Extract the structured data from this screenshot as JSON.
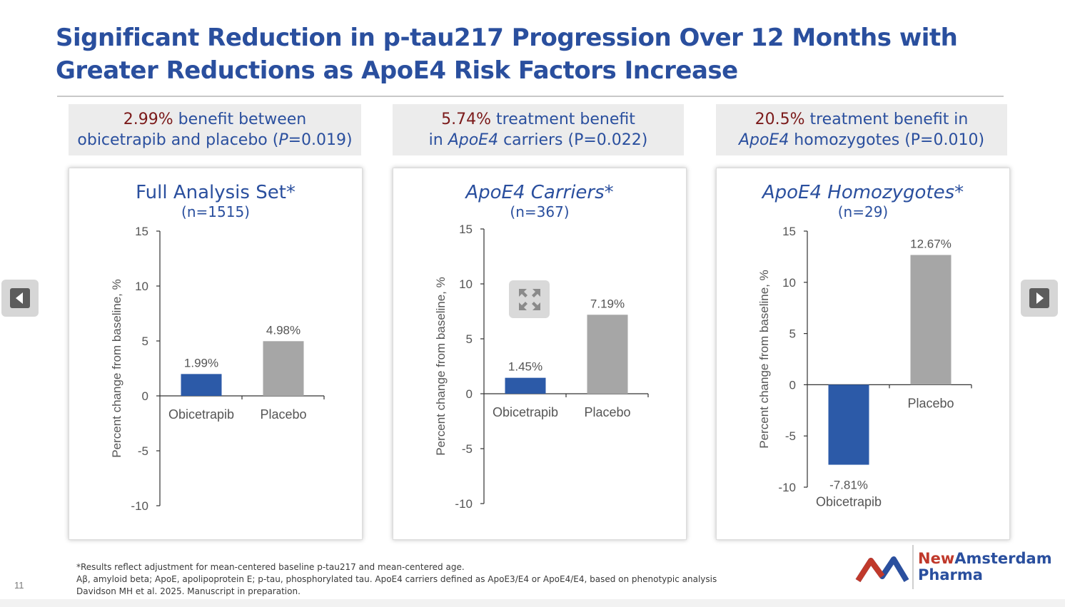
{
  "title": "Significant Reduction in p-tau217 Progression Over 12 Months with Greater Reductions as ApoE4 Risk Factors Increase",
  "benefits": [
    {
      "line1_highlight": "2.99%",
      "line1_rest": " benefit between",
      "line2_pre": "obicetrapib and placebo (",
      "line2_italic": "P",
      "line2_post": "=0.019)"
    },
    {
      "line1_highlight": "5.74%",
      "line1_rest": " treatment benefit",
      "line2_pre": "in ",
      "line2_italic": "ApoE4",
      "line2_post": " carriers (P=0.022)"
    },
    {
      "line1_highlight": "20.5%",
      "line1_rest": " treatment benefit in",
      "line2_pre": "",
      "line2_italic": "ApoE4",
      "line2_post": " homozygotes (P=0.010)"
    }
  ],
  "chart_data": [
    {
      "type": "bar",
      "title": "Full Analysis Set*",
      "title_italic": false,
      "subtitle": "(n=1515)",
      "ylabel": "Percent change from baseline, %",
      "ylim": [
        -10,
        15
      ],
      "yticks": [
        -10,
        -5,
        0,
        5,
        10,
        15
      ],
      "categories": [
        "Obicetrapib",
        "Placebo"
      ],
      "values": [
        1.99,
        4.98
      ],
      "value_labels": [
        "1.99%",
        "4.98%"
      ],
      "colors": [
        "#2c5aa8",
        "#a6a6a6"
      ]
    },
    {
      "type": "bar",
      "title": "ApoE4 Carriers*",
      "title_italic": true,
      "subtitle": "(n=367)",
      "ylabel": "Percent change from baseline, %",
      "ylim": [
        -10,
        15
      ],
      "yticks": [
        -10,
        -5,
        0,
        5,
        10,
        15
      ],
      "categories": [
        "Obicetrapib",
        "Placebo"
      ],
      "values": [
        1.45,
        7.19
      ],
      "value_labels": [
        "1.45%",
        "7.19%"
      ],
      "colors": [
        "#2c5aa8",
        "#a6a6a6"
      ]
    },
    {
      "type": "bar",
      "title": "ApoE4 Homozygotes*",
      "title_italic": true,
      "subtitle": "(n=29)",
      "ylabel": "Percent change from baseline, %",
      "ylim": [
        -10,
        15
      ],
      "yticks": [
        -10,
        -5,
        0,
        5,
        10,
        15
      ],
      "categories": [
        "Obicetrapib",
        "Placebo"
      ],
      "values": [
        -7.81,
        12.67
      ],
      "value_labels": [
        "-7.81%",
        "12.67%"
      ],
      "colors": [
        "#2c5aa8",
        "#a6a6a6"
      ]
    }
  ],
  "footnotes": [
    "*Results reflect adjustment for mean-centered baseline p-tau217 and mean-centered age.",
    "Aβ, amyloid beta; ApoE, apolipoprotein E; p-tau, phosphorylated tau. ApoE4 carriers defined as ApoE3/E4 or ApoE4/E4, based on phenotypic analysis",
    "Davidson MH et al. 2025. Manuscript in preparation."
  ],
  "slide_number": "11",
  "logo": {
    "new": "New",
    "amsterdam": "Amsterdam",
    "line2": "Pharma"
  },
  "icons": {
    "prev": "prev-slide-icon",
    "next": "next-slide-icon",
    "expand": "expand-icon"
  }
}
